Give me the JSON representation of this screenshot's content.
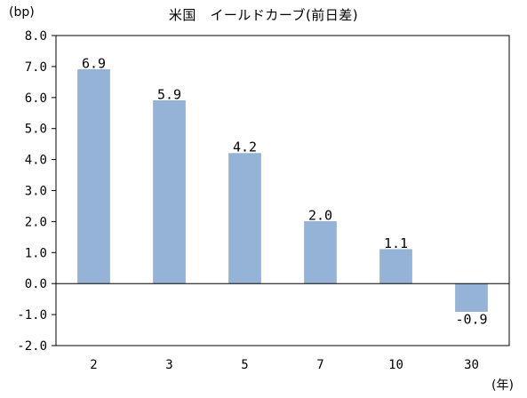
{
  "chart_data": {
    "type": "bar",
    "title": "米国　イールドカーブ(前日差)",
    "ylabel": "(bp)",
    "xlabel": "(年)",
    "categories": [
      "2",
      "3",
      "5",
      "7",
      "10",
      "30"
    ],
    "values": [
      6.9,
      5.9,
      4.2,
      2.0,
      1.1,
      -0.9
    ],
    "value_labels": [
      "6.9",
      "5.9",
      "4.2",
      "2.0",
      "1.1",
      "-0.9"
    ],
    "ylim": [
      -2.0,
      8.0
    ],
    "yticks": [
      "8.0",
      "7.0",
      "6.0",
      "5.0",
      "4.0",
      "3.0",
      "2.0",
      "1.0",
      "0.0",
      "-1.0",
      "-2.0"
    ],
    "grid": false,
    "bar_color": "#95B3D7",
    "bar_edge_color": "#7F9FC7"
  }
}
